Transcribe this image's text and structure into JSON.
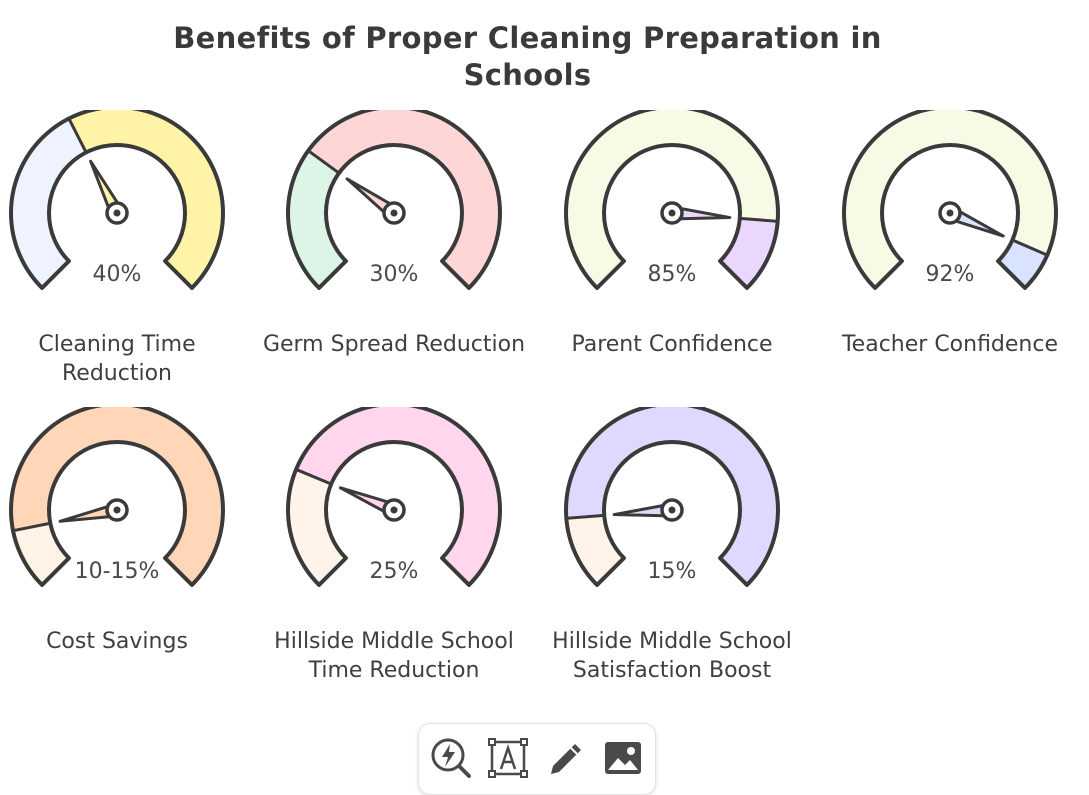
{
  "title": "Benefits of Proper Cleaning Preparation in Schools",
  "gauges": [
    {
      "label": "Cleaning Time Reduction",
      "value_text": "40%",
      "value": 0.4,
      "colors": [
        "#eef3ff",
        "#fff3a8"
      ]
    },
    {
      "label": "Germ Spread Reduction",
      "value_text": "30%",
      "value": 0.3,
      "colors": [
        "#ddf5e6",
        "#ffd6d6"
      ]
    },
    {
      "label": "Parent Confidence",
      "value_text": "85%",
      "value": 0.85,
      "colors": [
        "#f7fbe6",
        "#ead7fb"
      ]
    },
    {
      "label": "Teacher Confidence",
      "value_text": "92%",
      "value": 0.92,
      "colors": [
        "#f7fbe6",
        "#d8e4ff"
      ]
    },
    {
      "label": "Cost Savings",
      "value_text": "10-15%",
      "value": 0.125,
      "colors": [
        "#fff4e6",
        "#ffd6b8"
      ]
    },
    {
      "label": "Hillside Middle School Time Reduction",
      "value_text": "25%",
      "value": 0.25,
      "colors": [
        "#fff3ea",
        "#ffd6ee"
      ]
    },
    {
      "label": "Hillside Middle School Satisfaction Boost",
      "value_text": "15%",
      "value": 0.15,
      "colors": [
        "#fff3ea",
        "#e0d9ff"
      ]
    }
  ],
  "toolbar": {
    "tools": [
      "lightning-search-icon",
      "text-box-icon",
      "pencil-icon",
      "image-icon"
    ]
  }
}
